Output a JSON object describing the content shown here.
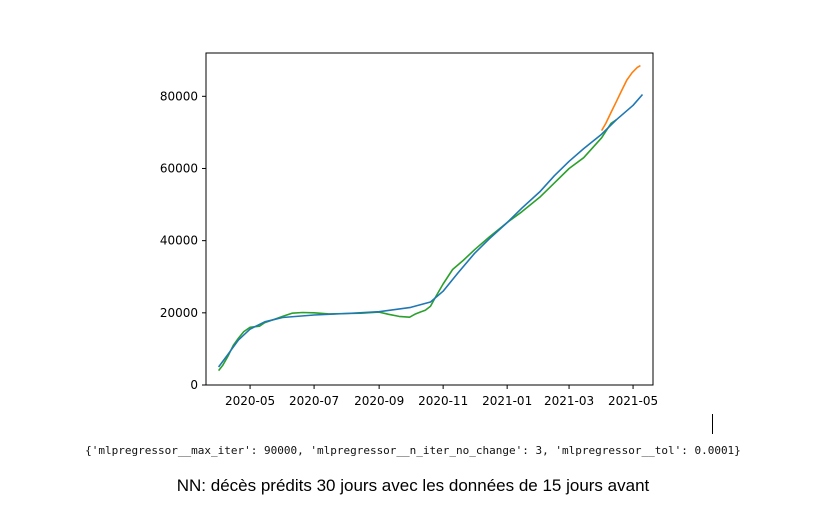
{
  "chart_data": {
    "type": "line",
    "title": "",
    "xlabel": "",
    "ylabel": "",
    "x_range": [
      "2020-03-20",
      "2021-05-20"
    ],
    "ylim": [
      0,
      92000
    ],
    "x_ticks": [
      {
        "date": "2020-05-01",
        "label": "2020-05"
      },
      {
        "date": "2020-07-01",
        "label": "2020-07"
      },
      {
        "date": "2020-09-01",
        "label": "2020-09"
      },
      {
        "date": "2020-11-01",
        "label": "2020-11"
      },
      {
        "date": "2021-01-01",
        "label": "2021-01"
      },
      {
        "date": "2021-03-01",
        "label": "2021-03"
      },
      {
        "date": "2021-05-01",
        "label": "2021-05"
      }
    ],
    "y_ticks": [
      0,
      20000,
      40000,
      60000,
      80000
    ],
    "grid": false,
    "series": [
      {
        "color": "#ff7f0e",
        "points": [
          [
            "2021-04-01",
            70500
          ],
          [
            "2021-04-05",
            72500
          ],
          [
            "2021-04-10",
            75500
          ],
          [
            "2021-04-15",
            78500
          ],
          [
            "2021-04-20",
            81500
          ],
          [
            "2021-04-25",
            84500
          ],
          [
            "2021-04-30",
            86500
          ],
          [
            "2021-05-05",
            88000
          ],
          [
            "2021-05-08",
            88500
          ]
        ]
      },
      {
        "color": "#2ca02c",
        "points": [
          [
            "2020-04-01",
            4000
          ],
          [
            "2020-04-05",
            5500
          ],
          [
            "2020-04-10",
            8000
          ],
          [
            "2020-04-15",
            11000
          ],
          [
            "2020-04-20",
            13000
          ],
          [
            "2020-04-25",
            14800
          ],
          [
            "2020-05-01",
            16000
          ],
          [
            "2020-05-10",
            16300
          ],
          [
            "2020-05-15",
            17300
          ],
          [
            "2020-05-25",
            18300
          ],
          [
            "2020-06-01",
            19000
          ],
          [
            "2020-06-10",
            19900
          ],
          [
            "2020-06-20",
            20100
          ],
          [
            "2020-07-01",
            20000
          ],
          [
            "2020-07-15",
            19700
          ],
          [
            "2020-08-01",
            19800
          ],
          [
            "2020-08-15",
            19900
          ],
          [
            "2020-09-01",
            20200
          ],
          [
            "2020-09-10",
            19600
          ],
          [
            "2020-09-20",
            19000
          ],
          [
            "2020-09-30",
            18800
          ],
          [
            "2020-10-05",
            19600
          ],
          [
            "2020-10-10",
            20200
          ],
          [
            "2020-10-15",
            20700
          ],
          [
            "2020-10-20",
            21800
          ],
          [
            "2020-10-25",
            24500
          ],
          [
            "2020-11-01",
            28000
          ],
          [
            "2020-11-10",
            32000
          ],
          [
            "2020-11-20",
            34500
          ],
          [
            "2020-12-01",
            37500
          ],
          [
            "2020-12-15",
            41000
          ],
          [
            "2021-01-01",
            45000
          ],
          [
            "2021-01-15",
            48000
          ],
          [
            "2021-02-01",
            52000
          ],
          [
            "2021-02-15",
            56000
          ],
          [
            "2021-03-01",
            60000
          ],
          [
            "2021-03-15",
            63000
          ],
          [
            "2021-04-01",
            68500
          ],
          [
            "2021-04-10",
            72500
          ],
          [
            "2021-04-15",
            73500
          ]
        ]
      },
      {
        "color": "#1f77b4",
        "points": [
          [
            "2020-04-01",
            5000
          ],
          [
            "2020-04-10",
            8500
          ],
          [
            "2020-04-20",
            12500
          ],
          [
            "2020-05-01",
            15500
          ],
          [
            "2020-05-15",
            17500
          ],
          [
            "2020-06-01",
            18700
          ],
          [
            "2020-07-01",
            19400
          ],
          [
            "2020-08-01",
            19800
          ],
          [
            "2020-09-01",
            20300
          ],
          [
            "2020-10-01",
            21500
          ],
          [
            "2020-10-20",
            23000
          ],
          [
            "2020-11-01",
            26000
          ],
          [
            "2020-11-15",
            31000
          ],
          [
            "2020-12-01",
            36500
          ],
          [
            "2020-12-15",
            40500
          ],
          [
            "2021-01-01",
            45000
          ],
          [
            "2021-01-15",
            49000
          ],
          [
            "2021-02-01",
            53500
          ],
          [
            "2021-02-15",
            58000
          ],
          [
            "2021-03-01",
            62000
          ],
          [
            "2021-03-15",
            65500
          ],
          [
            "2021-04-01",
            69500
          ],
          [
            "2021-04-15",
            73500
          ],
          [
            "2021-05-01",
            77500
          ],
          [
            "2021-05-10",
            80500
          ]
        ]
      }
    ]
  },
  "params_text": "{'mlpregressor__max_iter': 90000, 'mlpregressor__n_iter_no_change': 3, 'mlpregressor__tol': 0.0001}",
  "caption": "NN: décès prédits 30 jours avec les données de 15 jours avant"
}
